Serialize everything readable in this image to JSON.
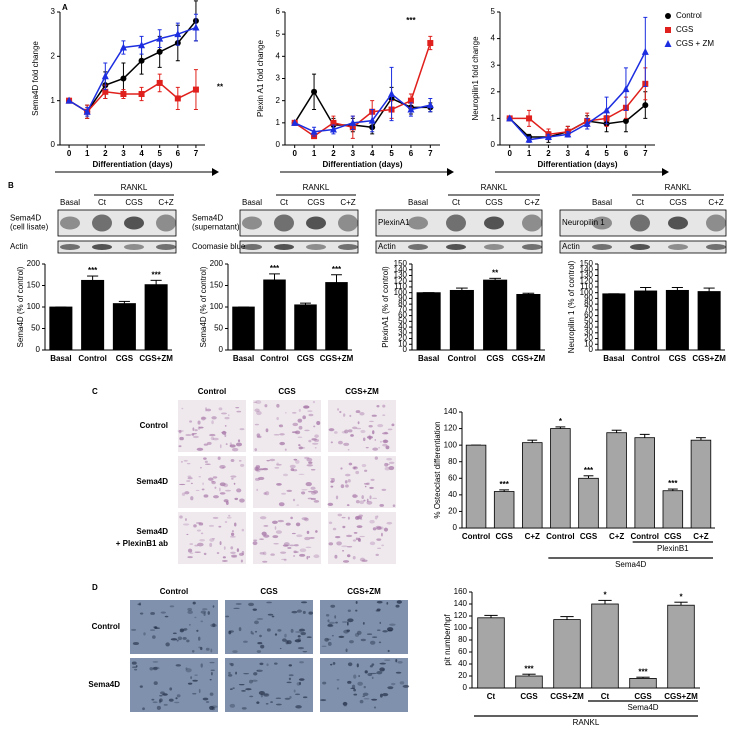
{
  "panel_labels": [
    "A",
    "B",
    "C",
    "D"
  ],
  "chart_data": [
    {
      "type": "line",
      "y_label": "Sema4D fold change",
      "x_label": "Differentiation (days)",
      "annotation": "**",
      "x": [
        0,
        1,
        2,
        3,
        4,
        5,
        6,
        7
      ],
      "xlim": [
        -0.5,
        7.5
      ],
      "xticks": [
        0,
        1,
        2,
        3,
        4,
        5,
        6,
        7
      ],
      "ylim": [
        0,
        3
      ],
      "yticks": [
        0,
        1,
        2,
        3
      ],
      "legend": "right",
      "series": [
        {
          "name": "Control",
          "color": "#000000",
          "marker": "circle",
          "values": [
            1,
            0.75,
            1.35,
            1.5,
            1.9,
            2.1,
            2.3,
            2.8
          ],
          "errors": [
            0,
            0.15,
            0.3,
            0.35,
            0.3,
            0.35,
            0.4,
            0.45
          ]
        },
        {
          "name": "CGS",
          "color": "#e0201c",
          "marker": "square",
          "values": [
            1,
            0.75,
            1.2,
            1.15,
            1.15,
            1.4,
            1.05,
            1.25
          ],
          "errors": [
            0,
            0.15,
            0.15,
            0.1,
            0.15,
            0.2,
            0.25,
            0.45
          ]
        },
        {
          "name": "CGS + ZM",
          "color": "#1c2ee0",
          "marker": "triangle",
          "values": [
            1,
            0.75,
            1.55,
            2.2,
            2.25,
            2.4,
            2.5,
            2.65
          ],
          "errors": [
            0,
            0.1,
            0.3,
            0.15,
            0.2,
            0.2,
            0.25,
            0.3
          ]
        }
      ]
    },
    {
      "type": "line",
      "y_label": "Plexin A1 fold change",
      "x_label": "Differentiation (days)",
      "annotation": "***",
      "x": [
        0,
        1,
        2,
        3,
        4,
        5,
        6,
        7
      ],
      "xlim": [
        -0.5,
        7.5
      ],
      "xticks": [
        0,
        1,
        2,
        3,
        4,
        5,
        6,
        7
      ],
      "ylim": [
        0,
        6
      ],
      "yticks": [
        0,
        1,
        2,
        3,
        4,
        5,
        6
      ],
      "series": [
        {
          "color": "#000000",
          "marker": "circle",
          "values": [
            1,
            2.4,
            0.9,
            0.9,
            0.8,
            2.1,
            1.7,
            1.7
          ],
          "errors": [
            0,
            0.8,
            0.3,
            0.3,
            0.3,
            0.5,
            0.3,
            0.2
          ]
        },
        {
          "color": "#e0201c",
          "marker": "square",
          "values": [
            1,
            0.4,
            1.0,
            0.8,
            1.5,
            1.6,
            2.0,
            4.6
          ],
          "errors": [
            0,
            0.1,
            0.3,
            0.5,
            0.5,
            0.4,
            0.3,
            0.3
          ]
        },
        {
          "color": "#1c2ee0",
          "marker": "triangle",
          "values": [
            1,
            0.6,
            0.7,
            1.0,
            1.1,
            2.3,
            1.6,
            1.8
          ],
          "errors": [
            0,
            0.2,
            0.2,
            0.3,
            0.5,
            1.2,
            0.3,
            0.3
          ]
        }
      ]
    },
    {
      "type": "line",
      "y_label": "Neuropilin1 fold change",
      "x_label": "Differentiation (days)",
      "x": [
        0,
        1,
        2,
        3,
        4,
        5,
        6,
        7
      ],
      "xlim": [
        -0.5,
        7.5
      ],
      "xticks": [
        0,
        1,
        2,
        3,
        4,
        5,
        6,
        7
      ],
      "ylim": [
        0,
        5
      ],
      "yticks": [
        0,
        1,
        2,
        3,
        4,
        5
      ],
      "series": [
        {
          "color": "#000000",
          "marker": "circle",
          "values": [
            1,
            0.3,
            0.3,
            0.5,
            0.9,
            0.8,
            0.9,
            1.5
          ],
          "errors": [
            0,
            0.1,
            0.2,
            0.2,
            0.2,
            0.3,
            0.4,
            0.5
          ]
        },
        {
          "color": "#e0201c",
          "marker": "square",
          "values": [
            1,
            1.0,
            0.4,
            0.5,
            0.9,
            1.0,
            1.4,
            2.3
          ],
          "errors": [
            0,
            0.3,
            0.2,
            0.2,
            0.3,
            0.3,
            0.4,
            0.6
          ]
        },
        {
          "color": "#1c2ee0",
          "marker": "triangle",
          "values": [
            1,
            0.2,
            0.3,
            0.4,
            0.8,
            1.3,
            2.1,
            3.5
          ],
          "errors": [
            0,
            0.1,
            0.1,
            0.1,
            0.2,
            0.5,
            0.8,
            1.3
          ]
        }
      ]
    },
    {
      "type": "bar",
      "y_label": "Sema4D (% of control)",
      "categories": [
        "Basal",
        "Control",
        "CGS",
        "CGS+ZM"
      ],
      "values": [
        100,
        162,
        108,
        152
      ],
      "errors": [
        0,
        10,
        5,
        10
      ],
      "annotations": [
        null,
        "***",
        null,
        "***"
      ],
      "color": "#000000",
      "ylim": [
        0,
        200
      ],
      "yticks": [
        0,
        50,
        100,
        150,
        200
      ]
    },
    {
      "type": "bar",
      "y_label": "Sema4D (% of control)",
      "categories": [
        "Basal",
        "Control",
        "CGS",
        "CGS+ZM"
      ],
      "values": [
        100,
        163,
        105,
        157
      ],
      "errors": [
        0,
        14,
        4,
        18
      ],
      "annotations": [
        null,
        "***",
        null,
        "***"
      ],
      "color": "#000000",
      "ylim": [
        0,
        200
      ],
      "yticks": [
        0,
        50,
        100,
        150,
        200
      ]
    },
    {
      "type": "bar",
      "y_label": "PlexinA1 (% of control)",
      "categories": [
        "Basal",
        "Control",
        "CGS",
        "CGS+ZM"
      ],
      "values": [
        100,
        104,
        122,
        97
      ],
      "errors": [
        0,
        4,
        3,
        2
      ],
      "annotations": [
        null,
        null,
        "**",
        null
      ],
      "color": "#000000",
      "ylim": [
        0,
        150
      ],
      "yticks": [
        0,
        10,
        20,
        30,
        40,
        50,
        60,
        70,
        80,
        90,
        100,
        110,
        120,
        130,
        140,
        150
      ]
    },
    {
      "type": "bar",
      "y_label": "Neuropilin 1 (% of control)",
      "categories": [
        "Basal",
        "Control",
        "CGS",
        "CGS+ZM"
      ],
      "values": [
        98,
        103,
        104,
        102
      ],
      "errors": [
        0,
        6,
        5,
        6
      ],
      "color": "#000000",
      "ylim": [
        0,
        150
      ],
      "yticks": [
        0,
        10,
        20,
        30,
        40,
        50,
        60,
        70,
        80,
        90,
        100,
        110,
        120,
        130,
        140,
        150
      ]
    },
    {
      "type": "bar",
      "y_label": "% Osteoclast differentiation",
      "categories": [
        "Control",
        "CGS",
        "C+Z",
        "Control",
        "CGS",
        "C+Z",
        "Control",
        "CGS",
        "C+Z"
      ],
      "values": [
        100,
        44,
        103,
        120,
        60,
        115,
        109,
        45,
        106
      ],
      "errors": [
        0,
        2,
        3,
        2,
        3,
        3,
        4,
        2,
        3
      ],
      "annotations": [
        null,
        "***",
        null,
        "*",
        "***",
        null,
        null,
        "***",
        null
      ],
      "group_labels": [
        "PlexinB1",
        "Sema4D"
      ],
      "color": "#a6a6a6",
      "ylim": [
        0,
        140
      ],
      "yticks": [
        0,
        20,
        40,
        60,
        80,
        100,
        120,
        140
      ]
    },
    {
      "type": "bar",
      "y_label": "pit number/hpf",
      "categories": [
        "Ct",
        "CGS",
        "CGS+ZM",
        "Ct",
        "CGS",
        "CGS+ZM"
      ],
      "values": [
        117,
        20,
        114,
        140,
        16,
        138
      ],
      "errors": [
        4,
        3,
        5,
        6,
        2,
        5
      ],
      "annotations": [
        null,
        "***",
        null,
        "*",
        "***",
        "*"
      ],
      "group_labels": [
        "Sema4D",
        "RANKL"
      ],
      "color": "#a6a6a6",
      "ylim": [
        0,
        160
      ],
      "yticks": [
        0,
        20,
        40,
        60,
        80,
        100,
        120,
        140,
        160
      ]
    }
  ],
  "blots": [
    {
      "group": "RANKL",
      "lanes": [
        "Basal",
        "Ct",
        "CGS",
        "C+Z"
      ],
      "rows": [
        [
          "Sema4D",
          "(cell lisate)"
        ],
        [
          "Actin"
        ]
      ]
    },
    {
      "group": "RANKL",
      "lanes": [
        "Basal",
        "Ct",
        "CGS",
        "C+Z"
      ],
      "rows": [
        [
          "Sema4D",
          "(supernatant)"
        ],
        [
          "Coomasie blue"
        ]
      ]
    },
    {
      "group": "RANKL",
      "lanes": [
        "Basal",
        "Ct",
        "CGS",
        "C+Z"
      ],
      "rows": [
        [
          "PlexinA1"
        ],
        [
          "Actin"
        ]
      ]
    },
    {
      "group": "RANKL",
      "lanes": [
        "Basal",
        "Ct",
        "CGS",
        "C+Z"
      ],
      "rows": [
        [
          "Neuropilin 1"
        ],
        [
          "Actin"
        ]
      ]
    }
  ],
  "micrographs": [
    {
      "columns": [
        "Control",
        "CGS",
        "CGS+ZM"
      ],
      "rows": [
        [
          "Control"
        ],
        [
          "Sema4D"
        ],
        [
          "Sema4D",
          "+ PlexinB1 ab"
        ]
      ]
    },
    {
      "columns": [
        "Control",
        "CGS",
        "CGS+ZM"
      ],
      "rows": [
        [
          "Control"
        ],
        [
          "Sema4D"
        ]
      ]
    }
  ]
}
